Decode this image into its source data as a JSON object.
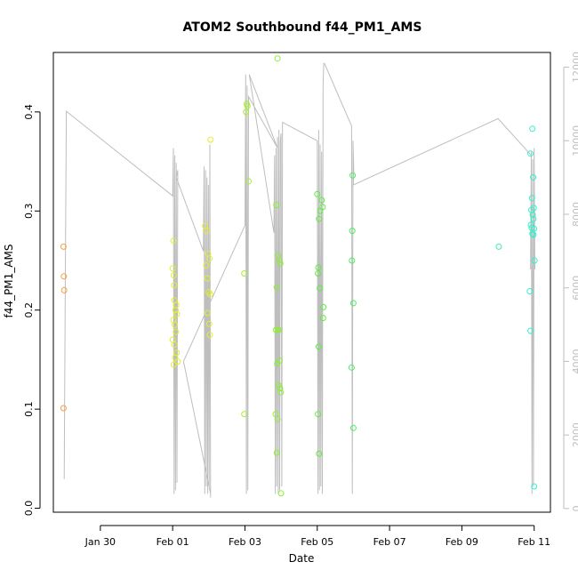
{
  "chart_data": {
    "type": "scatter",
    "title": "ATOM2 Southbound f44_PM1_AMS",
    "xlabel": "Date",
    "ylabel": "f44_PM1_AMS",
    "x_ticks": [
      {
        "day": 1.0,
        "label": "Jan 30"
      },
      {
        "day": 3.0,
        "label": "Feb 01"
      },
      {
        "day": 5.0,
        "label": "Feb 03"
      },
      {
        "day": 7.0,
        "label": "Feb 05"
      },
      {
        "day": 9.0,
        "label": "Feb 07"
      },
      {
        "day": 11.0,
        "label": "Feb 09"
      },
      {
        "day": 13.0,
        "label": "Feb 11"
      }
    ],
    "xlim": [
      -0.3,
      13.45
    ],
    "ylim": [
      -0.004,
      0.46
    ],
    "y_ticks": [
      0.0,
      0.1,
      0.2,
      0.3,
      0.4
    ],
    "y_tick_labels": [
      "0.0",
      "0.1",
      "0.2",
      "0.3",
      "0.4"
    ],
    "y2_ticks": [
      0,
      2000,
      4000,
      6000,
      8000,
      10000,
      12000
    ],
    "y2_tick_labels": [
      "0",
      "2000",
      "4000",
      "6000",
      "8000",
      "10000",
      "12000"
    ],
    "y2lim": [
      -100,
      12400
    ],
    "grid": false,
    "legend": "none",
    "colors": {
      "axis": "#000000",
      "secondary_axis": "#bebebe",
      "track_line": "#bebebe"
    },
    "points": [
      {
        "x": -0.02,
        "y": 0.264,
        "color": "#f4a040"
      },
      {
        "x": -0.01,
        "y": 0.234,
        "color": "#f4a040"
      },
      {
        "x": 0.0,
        "y": 0.22,
        "color": "#f4a040"
      },
      {
        "x": -0.02,
        "y": 0.101,
        "color": "#f4a040"
      },
      {
        "x": 3.02,
        "y": 0.27,
        "color": "#e2ef2e"
      },
      {
        "x": 3.0,
        "y": 0.242,
        "color": "#e2ef2e"
      },
      {
        "x": 3.03,
        "y": 0.235,
        "color": "#e2ef2e"
      },
      {
        "x": 3.04,
        "y": 0.225,
        "color": "#e2ef2e"
      },
      {
        "x": 3.05,
        "y": 0.21,
        "color": "#e2ef2e"
      },
      {
        "x": 3.1,
        "y": 0.205,
        "color": "#e2ef2e"
      },
      {
        "x": 3.08,
        "y": 0.2,
        "color": "#e2ef2e"
      },
      {
        "x": 3.12,
        "y": 0.196,
        "color": "#e2ef2e"
      },
      {
        "x": 3.02,
        "y": 0.19,
        "color": "#e2ef2e"
      },
      {
        "x": 3.06,
        "y": 0.185,
        "color": "#e2ef2e"
      },
      {
        "x": 3.09,
        "y": 0.178,
        "color": "#e2ef2e"
      },
      {
        "x": 3.0,
        "y": 0.17,
        "color": "#e2ef2e"
      },
      {
        "x": 3.05,
        "y": 0.165,
        "color": "#e2ef2e"
      },
      {
        "x": 3.11,
        "y": 0.157,
        "color": "#e2ef2e"
      },
      {
        "x": 3.07,
        "y": 0.152,
        "color": "#e2ef2e"
      },
      {
        "x": 3.14,
        "y": 0.148,
        "color": "#e2ef2e"
      },
      {
        "x": 3.03,
        "y": 0.145,
        "color": "#e2ef2e"
      },
      {
        "x": 3.9,
        "y": 0.285,
        "color": "#e2ef2e"
      },
      {
        "x": 3.95,
        "y": 0.28,
        "color": "#e2ef2e"
      },
      {
        "x": 3.98,
        "y": 0.257,
        "color": "#e2ef2e"
      },
      {
        "x": 4.02,
        "y": 0.252,
        "color": "#e2ef2e"
      },
      {
        "x": 3.93,
        "y": 0.245,
        "color": "#e2ef2e"
      },
      {
        "x": 3.96,
        "y": 0.232,
        "color": "#e2ef2e"
      },
      {
        "x": 4.0,
        "y": 0.218,
        "color": "#e2ef2e"
      },
      {
        "x": 4.04,
        "y": 0.216,
        "color": "#e2ef2e"
      },
      {
        "x": 3.97,
        "y": 0.197,
        "color": "#e2ef2e"
      },
      {
        "x": 4.01,
        "y": 0.186,
        "color": "#e2ef2e"
      },
      {
        "x": 4.03,
        "y": 0.175,
        "color": "#e2ef2e"
      },
      {
        "x": 4.05,
        "y": 0.372,
        "color": "#e2ef2e"
      },
      {
        "x": 5.05,
        "y": 0.408,
        "color": "#a6ef30"
      },
      {
        "x": 5.07,
        "y": 0.406,
        "color": "#a6ef30"
      },
      {
        "x": 5.03,
        "y": 0.4,
        "color": "#a6ef30"
      },
      {
        "x": 5.1,
        "y": 0.33,
        "color": "#a6ef30"
      },
      {
        "x": 4.98,
        "y": 0.237,
        "color": "#a6ef30"
      },
      {
        "x": 4.98,
        "y": 0.095,
        "color": "#a6ef30"
      },
      {
        "x": 5.9,
        "y": 0.454,
        "color": "#8cef30"
      },
      {
        "x": 5.87,
        "y": 0.306,
        "color": "#8cef30"
      },
      {
        "x": 5.92,
        "y": 0.255,
        "color": "#8cef30"
      },
      {
        "x": 5.95,
        "y": 0.25,
        "color": "#8cef30"
      },
      {
        "x": 5.98,
        "y": 0.247,
        "color": "#8cef30"
      },
      {
        "x": 5.88,
        "y": 0.223,
        "color": "#8cef30"
      },
      {
        "x": 5.86,
        "y": 0.18,
        "color": "#8cef30"
      },
      {
        "x": 5.91,
        "y": 0.18,
        "color": "#8cef30"
      },
      {
        "x": 5.94,
        "y": 0.18,
        "color": "#8cef30"
      },
      {
        "x": 5.96,
        "y": 0.149,
        "color": "#8cef30"
      },
      {
        "x": 5.89,
        "y": 0.146,
        "color": "#8cef30"
      },
      {
        "x": 5.93,
        "y": 0.124,
        "color": "#8cef30"
      },
      {
        "x": 5.97,
        "y": 0.121,
        "color": "#8cef30"
      },
      {
        "x": 5.99,
        "y": 0.117,
        "color": "#8cef30"
      },
      {
        "x": 5.85,
        "y": 0.095,
        "color": "#8cef30"
      },
      {
        "x": 5.9,
        "y": 0.09,
        "color": "#8cef30"
      },
      {
        "x": 5.88,
        "y": 0.056,
        "color": "#8cef30"
      },
      {
        "x": 6.0,
        "y": 0.015,
        "color": "#8cef30"
      },
      {
        "x": 7.0,
        "y": 0.317,
        "color": "#5cef3a"
      },
      {
        "x": 7.12,
        "y": 0.311,
        "color": "#5cef3a"
      },
      {
        "x": 7.15,
        "y": 0.304,
        "color": "#5cef3a"
      },
      {
        "x": 7.08,
        "y": 0.3,
        "color": "#5cef3a"
      },
      {
        "x": 7.05,
        "y": 0.292,
        "color": "#5cef3a"
      },
      {
        "x": 7.03,
        "y": 0.243,
        "color": "#5cef3a"
      },
      {
        "x": 7.02,
        "y": 0.237,
        "color": "#5cef3a"
      },
      {
        "x": 7.07,
        "y": 0.222,
        "color": "#5cef3a"
      },
      {
        "x": 7.17,
        "y": 0.203,
        "color": "#5cef3a"
      },
      {
        "x": 7.16,
        "y": 0.192,
        "color": "#5cef3a"
      },
      {
        "x": 7.04,
        "y": 0.163,
        "color": "#5cef3a"
      },
      {
        "x": 7.02,
        "y": 0.095,
        "color": "#5cef3a"
      },
      {
        "x": 7.05,
        "y": 0.055,
        "color": "#5cef3a"
      },
      {
        "x": 7.98,
        "y": 0.336,
        "color": "#4cef5e"
      },
      {
        "x": 7.97,
        "y": 0.28,
        "color": "#4cef5e"
      },
      {
        "x": 7.96,
        "y": 0.25,
        "color": "#4cef5e"
      },
      {
        "x": 8.0,
        "y": 0.207,
        "color": "#4cef5e"
      },
      {
        "x": 7.95,
        "y": 0.142,
        "color": "#4cef5e"
      },
      {
        "x": 8.0,
        "y": 0.081,
        "color": "#4cef5e"
      },
      {
        "x": 12.02,
        "y": 0.264,
        "color": "#3fefa4"
      },
      {
        "x": 12.95,
        "y": 0.383,
        "color": "#35efcc"
      },
      {
        "x": 12.9,
        "y": 0.358,
        "color": "#35efcc"
      },
      {
        "x": 12.97,
        "y": 0.334,
        "color": "#35efcc"
      },
      {
        "x": 12.94,
        "y": 0.313,
        "color": "#35efcc"
      },
      {
        "x": 12.99,
        "y": 0.303,
        "color": "#35efcc"
      },
      {
        "x": 12.92,
        "y": 0.301,
        "color": "#35efcc"
      },
      {
        "x": 12.96,
        "y": 0.296,
        "color": "#35efcc"
      },
      {
        "x": 12.98,
        "y": 0.292,
        "color": "#35efcc"
      },
      {
        "x": 12.91,
        "y": 0.286,
        "color": "#35efcc"
      },
      {
        "x": 12.93,
        "y": 0.283,
        "color": "#35efcc"
      },
      {
        "x": 13.0,
        "y": 0.282,
        "color": "#35efcc"
      },
      {
        "x": 12.95,
        "y": 0.277,
        "color": "#35efcc"
      },
      {
        "x": 12.98,
        "y": 0.276,
        "color": "#35efcc"
      },
      {
        "x": 13.01,
        "y": 0.25,
        "color": "#35efcc"
      },
      {
        "x": 12.88,
        "y": 0.219,
        "color": "#35efcc"
      },
      {
        "x": 12.9,
        "y": 0.179,
        "color": "#35efcc"
      },
      {
        "x": 13.0,
        "y": 0.022,
        "color": "#35efcc"
      }
    ],
    "line_series": {
      "axis": "secondary",
      "x": [
        0.0,
        0.03,
        0.06,
        3.0,
        3.02,
        3.04,
        3.06,
        3.08,
        3.1,
        3.12,
        3.14,
        3.1,
        3.85,
        3.87,
        3.89,
        3.91,
        3.93,
        3.95,
        3.97,
        3.99,
        4.01,
        4.03,
        4.05,
        4.05,
        3.3,
        5.0,
        5.02,
        5.04,
        5.06,
        5.08,
        5.1,
        5.9,
        5.12,
        5.8,
        5.82,
        5.84,
        5.86,
        5.88,
        5.9,
        5.92,
        5.94,
        5.96,
        5.98,
        6.0,
        6.02,
        6.04,
        7.0,
        7.02,
        7.04,
        7.06,
        7.08,
        7.1,
        7.12,
        7.14,
        7.16,
        7.18,
        7.2,
        7.95,
        7.97,
        7.99,
        8.01,
        8.0,
        12.0,
        12.92,
        12.9,
        12.92,
        12.94,
        12.96,
        12.98,
        13.0,
        13.02
      ],
      "y": [
        800,
        6000,
        10800,
        8500,
        9800,
        400,
        9600,
        500,
        9400,
        700,
        9200,
        9000,
        7000,
        9300,
        400,
        9200,
        600,
        9000,
        400,
        8800,
        600,
        9900,
        300,
        400,
        4000,
        7700,
        11800,
        400,
        11500,
        500,
        11200,
        9800,
        11800,
        7500,
        9600,
        400,
        9800,
        600,
        10100,
        400,
        10300,
        500,
        10000,
        10200,
        600,
        10500,
        10000,
        400,
        10300,
        500,
        9900,
        600,
        9700,
        400,
        11500,
        12100,
        12100,
        10400,
        400,
        10000,
        9200,
        8800,
        10600,
        9600,
        6500,
        9700,
        400,
        9500,
        600,
        9800,
        6500
      ]
    }
  }
}
